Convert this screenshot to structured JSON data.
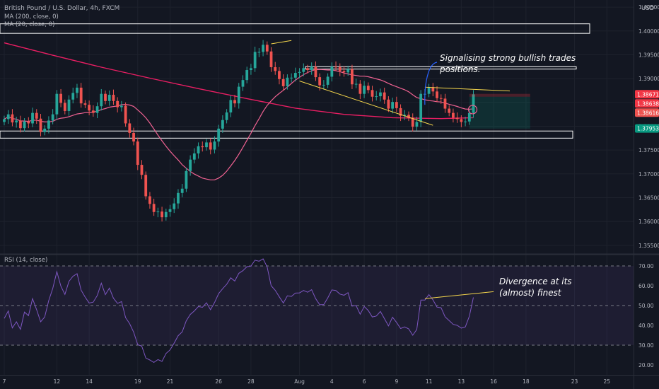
{
  "chart_data": {
    "type": "candlestick",
    "symbol": {
      "title": "British Pound / U.S. Dollar, 4h, FXCM",
      "currency": "USD"
    },
    "indicators": {
      "ma200_label": "MA (200, close, 0)",
      "ma20_label": "MA (20, close, 0)",
      "rsi_label": "RSI (14, close)",
      "ma200_color": "#e91e63",
      "ma20_color": "#f06292",
      "rsi_color": "#7e57c2"
    },
    "colors": {
      "up": "#26a69a",
      "down": "#ef5350",
      "background": "#131722",
      "grid": "#1e222d",
      "trendline": "#f5d64c",
      "box": "#ffffff"
    },
    "y_axis": {
      "ylim": [
        1.3535,
        1.4065
      ],
      "ticks": [
        "1.40500",
        "1.40000",
        "1.39500",
        "1.39000",
        "1.38500",
        "1.38000",
        "1.37500",
        "1.37000",
        "1.36500",
        "1.36000",
        "1.35500"
      ],
      "tick_values": [
        1.405,
        1.4,
        1.395,
        1.39,
        1.385,
        1.38,
        1.375,
        1.37,
        1.365,
        1.36,
        1.355
      ]
    },
    "price_labels": [
      {
        "text": "1.38671",
        "value": 1.38671,
        "color": "#f23645"
      },
      {
        "text": "1.38638",
        "value": 1.38638,
        "color": "#f23645"
      },
      {
        "text": "1.38616",
        "value": 1.38616,
        "color": "#ef5350"
      },
      {
        "text": "1.37953",
        "value": 1.37953,
        "color": "#089981"
      }
    ],
    "rsi_axis": {
      "ylim": [
        15,
        75
      ],
      "ticks": [
        "70.00",
        "60.00",
        "50.00",
        "40.00",
        "30.00",
        "20.00"
      ],
      "tick_values": [
        70,
        60,
        50,
        40,
        30,
        20
      ],
      "band": [
        30,
        70
      ]
    },
    "x_axis": {
      "labels": [
        "7",
        "12",
        "14",
        "19",
        "21",
        "26",
        "28",
        "Aug",
        "4",
        "6",
        "9",
        "11",
        "13",
        "16",
        "18",
        "23",
        "25"
      ],
      "bar_index": [
        0,
        13,
        21,
        33,
        41,
        53,
        61,
        73,
        81,
        89,
        97,
        105,
        113,
        121,
        129,
        141,
        149
      ]
    },
    "closes": [
      1.3815,
      1.3825,
      1.3808,
      1.3812,
      1.3796,
      1.381,
      1.3806,
      1.3828,
      1.3816,
      1.3788,
      1.3795,
      1.3812,
      1.3825,
      1.3868,
      1.3849,
      1.3832,
      1.3856,
      1.387,
      1.3881,
      1.3848,
      1.3845,
      1.3833,
      1.3828,
      1.3842,
      1.3868,
      1.3853,
      1.3866,
      1.3853,
      1.384,
      1.3843,
      1.3806,
      1.3786,
      1.3768,
      1.3719,
      1.3698,
      1.3653,
      1.3637,
      1.362,
      1.3621,
      1.3609,
      1.362,
      1.3626,
      1.3638,
      1.366,
      1.3669,
      1.3706,
      1.373,
      1.3743,
      1.3758,
      1.3756,
      1.3766,
      1.3751,
      1.3768,
      1.3795,
      1.3813,
      1.3829,
      1.3855,
      1.3848,
      1.3883,
      1.3897,
      1.3918,
      1.3922,
      1.3956,
      1.3956,
      1.3971,
      1.3957,
      1.3924,
      1.3916,
      1.3899,
      1.3884,
      1.3902,
      1.3902,
      1.3912,
      1.3914,
      1.3922,
      1.3918,
      1.3925,
      1.3903,
      1.3886,
      1.3887,
      1.3904,
      1.3925,
      1.3924,
      1.3916,
      1.3913,
      1.392,
      1.3888,
      1.3889,
      1.3868,
      1.3885,
      1.3876,
      1.3862,
      1.3863,
      1.3871,
      1.3856,
      1.3837,
      1.3851,
      1.3838,
      1.3822,
      1.3824,
      1.3818,
      1.3799,
      1.3809,
      1.3868,
      1.3868,
      1.3882,
      1.3873,
      1.3859,
      1.3858,
      1.3837,
      1.3828,
      1.3818,
      1.3815,
      1.3809,
      1.381,
      1.3828,
      1.3867
    ],
    "ma200": [
      1.3975,
      1.3949,
      1.3924,
      1.3901,
      1.3879,
      1.3858,
      1.3838,
      1.3825,
      1.3818,
      1.3816,
      1.3818
    ],
    "ma200_index": [
      0,
      12,
      24,
      36,
      48,
      60,
      72,
      84,
      96,
      108,
      116
    ],
    "rsi": [
      43.5,
      47.3,
      38.7,
      41.8,
      38.0,
      46.7,
      44.9,
      53.5,
      47.9,
      41.8,
      44.2,
      52.5,
      58.6,
      67.1,
      59.8,
      55.6,
      62.2,
      64.8,
      66.1,
      57.8,
      54.3,
      51.3,
      51.7,
      55.1,
      61.3,
      55.5,
      58.8,
      53.7,
      51.1,
      52.0,
      43.9,
      40.9,
      36.6,
      30.2,
      29.5,
      23.5,
      22.5,
      21.3,
      22.7,
      21.8,
      25.8,
      27.6,
      31.0,
      34.8,
      36.7,
      42.3,
      45.5,
      47.3,
      49.5,
      49.1,
      51.4,
      47.9,
      51.5,
      56.0,
      58.5,
      60.7,
      64.0,
      62.4,
      66.3,
      67.6,
      69.6,
      69.9,
      72.9,
      72.4,
      73.6,
      69.5,
      60.0,
      57.7,
      54.4,
      51.3,
      54.9,
      54.6,
      56.3,
      56.4,
      57.6,
      56.7,
      58.0,
      53.5,
      50.4,
      50.5,
      53.9,
      57.9,
      57.6,
      55.8,
      55.2,
      56.5,
      49.7,
      50.0,
      45.6,
      49.5,
      47.5,
      44.2,
      44.7,
      47.0,
      43.4,
      39.7,
      44.1,
      41.5,
      38.4,
      39.2,
      38.2,
      35.0,
      37.9,
      52.8,
      52.8,
      55.5,
      52.9,
      49.2,
      48.9,
      44.3,
      42.4,
      40.5,
      40.0,
      38.6,
      39.2,
      44.6,
      54.1
    ],
    "zones": [
      {
        "from": 1.3995,
        "to": 1.4015
      },
      {
        "from": 1.392,
        "to": 1.3925
      },
      {
        "from": 1.3775,
        "to": 1.379
      }
    ],
    "annotations": {
      "price_note": "Signalising strong bullish trades positions.",
      "price_note_lines": [
        "Signalising strong bullish trades",
        "positions."
      ],
      "rsi_note_lines": [
        "Divergence at its",
        "(almost) finest"
      ]
    }
  }
}
